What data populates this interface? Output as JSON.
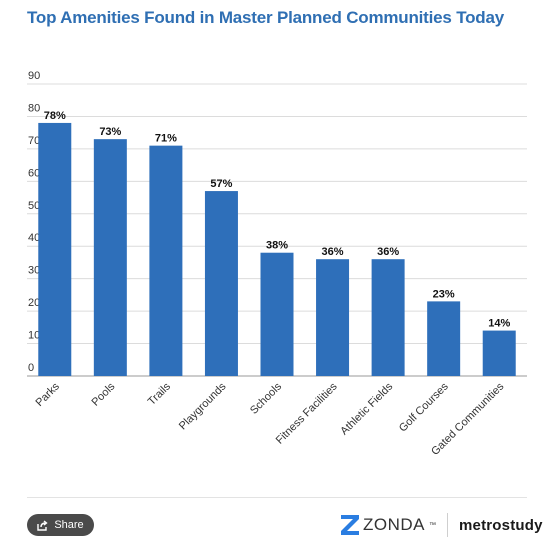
{
  "chart_data": {
    "type": "bar",
    "title": "Top Amenities Found in Master Planned Communities Today",
    "categories": [
      "Parks",
      "Pools",
      "Trails",
      "Playgrounds",
      "Schools",
      "Fitness Facilities",
      "Athletic Fields",
      "Golf Courses",
      "Gated Communities"
    ],
    "values": [
      78,
      73,
      71,
      57,
      38,
      36,
      36,
      23,
      14
    ],
    "data_labels": [
      "78%",
      "73%",
      "71%",
      "57%",
      "38%",
      "36%",
      "36%",
      "23%",
      "14%"
    ],
    "yticks": [
      0,
      10,
      20,
      30,
      40,
      50,
      60,
      70,
      80,
      90
    ],
    "ylim": [
      0,
      90
    ],
    "xlabel": "",
    "ylabel": "",
    "grid": true,
    "legend": "none",
    "bar_color": "#2e6fba"
  },
  "footer": {
    "share_label": "Share",
    "brand_left": "ZONDA",
    "brand_left_tm": "™",
    "brand_right": "metrostudy",
    "zonda_color": "#2a7de1"
  }
}
